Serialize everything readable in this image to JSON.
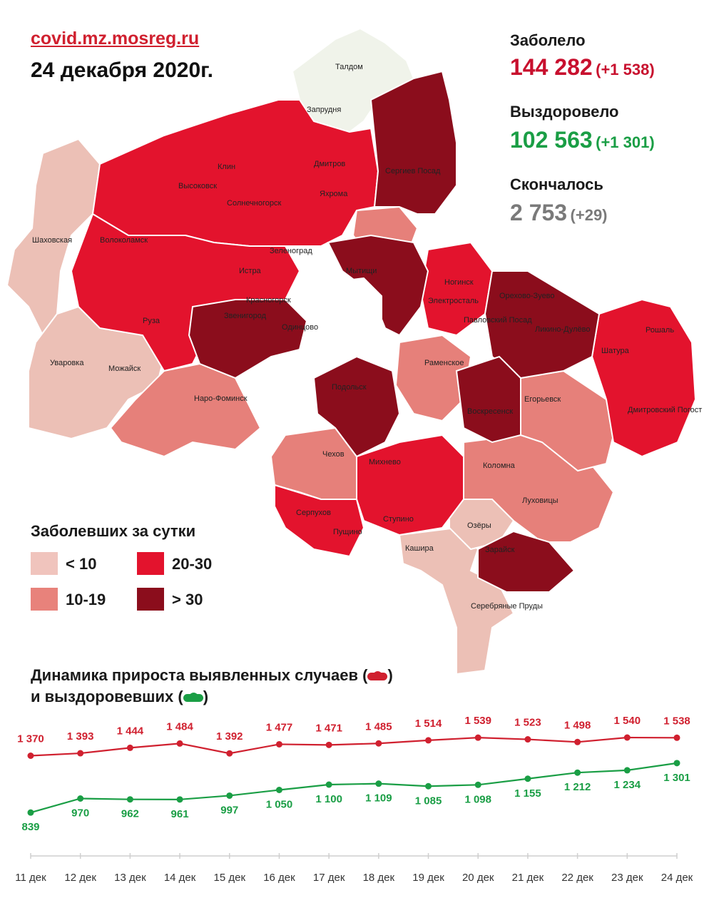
{
  "header": {
    "site": "covid.mz.mosreg.ru",
    "date": "24 декабря 2020г."
  },
  "stats": {
    "sick_label": "Заболело",
    "sick_value": "144 282",
    "sick_delta": "(+1 538)",
    "recovered_label": "Выздоровело",
    "recovered_value": "102 563",
    "recovered_delta": "(+1 301)",
    "died_label": "Скончалось",
    "died_value": "2 753",
    "died_delta": "(+29)"
  },
  "map": {
    "labels": [
      "Талдом",
      "Запрудня",
      "Клин",
      "Дмитров",
      "Яхрома",
      "Высоковск",
      "Солнечногорск",
      "Сергиев Посад",
      "Волоколамск",
      "Шаховская",
      "Зеленоград",
      "Мытищи",
      "Истра",
      "Красногорск",
      "Ногинск",
      "Электросталь",
      "Орехово-Зуево",
      "Павловский Посад",
      "Ликино-Дулёво",
      "Рошаль",
      "Звенигород",
      "Одинцово",
      "Руза",
      "Уваровка",
      "Можайск",
      "Наро-Фоминск",
      "Раменское",
      "Шатура",
      "Подольск",
      "Егорьевск",
      "Воскресенск",
      "Дмитровский Погост",
      "Чехов",
      "Михнево",
      "Коломна",
      "Луховицы",
      "Серпухов",
      "Пущино",
      "Ступино",
      "Озёры",
      "Кашира",
      "Зарайск",
      "Серебряные Пруды"
    ]
  },
  "legend": {
    "title": "Заболевших за сутки",
    "items": [
      {
        "label": "< 10",
        "color": "#f0c4bd"
      },
      {
        "label": "10-19",
        "color": "#e8827b"
      },
      {
        "label": "20-30",
        "color": "#e3132d"
      },
      {
        "label": "> 30",
        "color": "#8b0d1c"
      }
    ]
  },
  "dynamics": {
    "title_line1": "Динамика прироста выявленных случаев (",
    "title_line1_end": ")",
    "title_line2": "и выздоровевших (",
    "title_line2_end": ")"
  },
  "chart_data": {
    "type": "line",
    "x": [
      "11 дек",
      "12 дек",
      "13 дек",
      "14 дек",
      "15 дек",
      "16 дек",
      "17 дек",
      "18 дек",
      "19 дек",
      "20 дек",
      "21 дек",
      "22 дек",
      "23 дек",
      "24 дек"
    ],
    "series": [
      {
        "values": [
          1370,
          1393,
          1444,
          1484,
          1392,
          1477,
          1471,
          1485,
          1514,
          1539,
          1523,
          1498,
          1540,
          1538
        ],
        "labels": [
          "1 370",
          "1 393",
          "1 444",
          "1 484",
          "1 392",
          "1 477",
          "1 471",
          "1 485",
          "1 514",
          "1 539",
          "1 523",
          "1 498",
          "1 540",
          "1 538"
        ],
        "color": "#d0202f"
      },
      {
        "values": [
          839,
          970,
          962,
          961,
          997,
          1050,
          1100,
          1109,
          1085,
          1098,
          1155,
          1212,
          1234,
          1301
        ],
        "labels": [
          "839",
          "970",
          "962",
          "961",
          "997",
          "1 050",
          "1 100",
          "1 109",
          "1 085",
          "1 098",
          "1 155",
          "1 212",
          "1 234",
          "1 301"
        ],
        "color": "#1a9e45"
      }
    ],
    "grid": false
  }
}
